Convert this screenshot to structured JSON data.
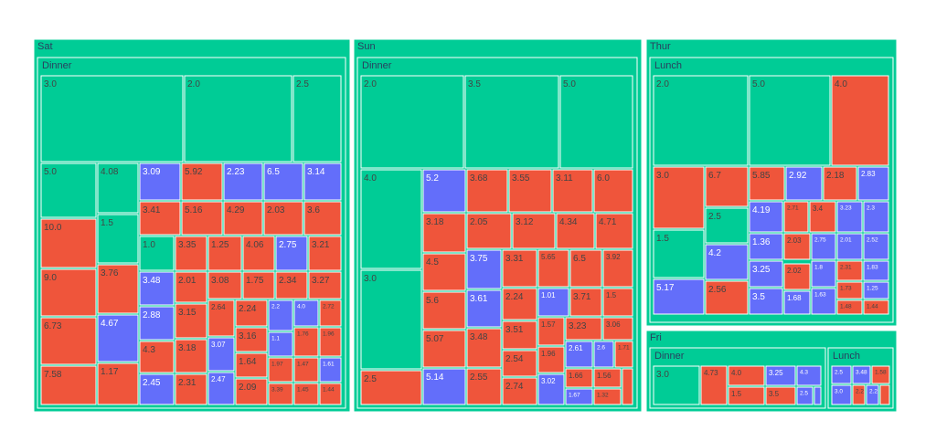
{
  "chart_data": {
    "type": "treemap",
    "colors": {
      "Female": "#ef553b",
      "Male": "#636efa",
      "group": "#00cc96",
      "border": "#ffffff"
    },
    "days": [
      {
        "name": "Sat",
        "times": [
          {
            "name": "Dinner",
            "tiles": [
              {
                "label": "3.0",
                "color": "group"
              },
              {
                "label": "2.0",
                "color": "group"
              },
              {
                "label": "2.5",
                "color": "group"
              },
              {
                "label": "5.0",
                "color": "group"
              },
              {
                "label": "4.08",
                "color": "group"
              },
              {
                "label": "1.5",
                "color": "group"
              },
              {
                "label": "10.0",
                "color": "Female"
              },
              {
                "label": "9.0",
                "color": "Female"
              },
              {
                "label": "3.76",
                "color": "Female"
              },
              {
                "label": "6.73",
                "color": "Female"
              },
              {
                "label": "4.67",
                "color": "Male"
              },
              {
                "label": "7.58",
                "color": "Female"
              },
              {
                "label": "1.17",
                "color": "Female"
              },
              {
                "label": "3.09",
                "color": "Male"
              },
              {
                "label": "5.92",
                "color": "Female"
              },
              {
                "label": "2.23",
                "color": "Male"
              },
              {
                "label": "6.5",
                "color": "Male"
              },
              {
                "label": "3.14",
                "color": "Male"
              },
              {
                "label": "3.41",
                "color": "Female"
              },
              {
                "label": "5.16",
                "color": "Female"
              },
              {
                "label": "4.29",
                "color": "Female"
              },
              {
                "label": "2.03",
                "color": "Female"
              },
              {
                "label": "3.6",
                "color": "Female"
              },
              {
                "label": "1.0",
                "color": "group"
              },
              {
                "label": "3.35",
                "color": "Female"
              },
              {
                "label": "1.25",
                "color": "Female"
              },
              {
                "label": "4.06",
                "color": "Female"
              },
              {
                "label": "2.75",
                "color": "Male"
              },
              {
                "label": "3.21",
                "color": "Female"
              },
              {
                "label": "3.48",
                "color": "Male"
              },
              {
                "label": "2.01",
                "color": "Female"
              },
              {
                "label": "3.08",
                "color": "Female"
              },
              {
                "label": "1.75",
                "color": "Female"
              },
              {
                "label": "2.34",
                "color": "Female"
              },
              {
                "label": "3.27",
                "color": "Female"
              },
              {
                "label": "2.88",
                "color": "Male"
              },
              {
                "label": "3.15",
                "color": "Female"
              },
              {
                "label": "2.64",
                "color": "Female"
              },
              {
                "label": "2.24",
                "color": "Female"
              },
              {
                "label": "2.2",
                "color": "Male"
              },
              {
                "label": "4.0",
                "color": "Male"
              },
              {
                "label": "2.72",
                "color": "Female"
              },
              {
                "label": "4.3",
                "color": "Female"
              },
              {
                "label": "3.18",
                "color": "Female"
              },
              {
                "label": "3.07",
                "color": "Male"
              },
              {
                "label": "3.16",
                "color": "Female"
              },
              {
                "label": "1.1",
                "color": "Male"
              },
              {
                "label": "1.76",
                "color": "Female"
              },
              {
                "label": "1.96",
                "color": "Female"
              },
              {
                "label": "1.64",
                "color": "Female"
              },
              {
                "label": "1.97",
                "color": "Female"
              },
              {
                "label": "1.47",
                "color": "Female"
              },
              {
                "label": "1.61",
                "color": "Male"
              },
              {
                "label": "2.45",
                "color": "Male"
              },
              {
                "label": "2.31",
                "color": "Female"
              },
              {
                "label": "2.47",
                "color": "Male"
              },
              {
                "label": "2.09",
                "color": "Female"
              },
              {
                "label": "3.39",
                "color": "Female"
              },
              {
                "label": "1.45",
                "color": "Female"
              },
              {
                "label": "1.44",
                "color": "Female"
              }
            ]
          }
        ]
      },
      {
        "name": "Sun",
        "times": [
          {
            "name": "Dinner",
            "tiles": [
              {
                "label": "2.0",
                "color": "group"
              },
              {
                "label": "3.5",
                "color": "group"
              },
              {
                "label": "5.0",
                "color": "group"
              },
              {
                "label": "4.0",
                "color": "group"
              },
              {
                "label": "3.0",
                "color": "group"
              },
              {
                "label": "2.5",
                "color": "Female"
              },
              {
                "label": "5.2",
                "color": "Male"
              },
              {
                "label": "3.68",
                "color": "Female"
              },
              {
                "label": "3.55",
                "color": "Female"
              },
              {
                "label": "3.11",
                "color": "Female"
              },
              {
                "label": "6.0",
                "color": "Female"
              },
              {
                "label": "3.18",
                "color": "Female"
              },
              {
                "label": "2.05",
                "color": "Female"
              },
              {
                "label": "3.12",
                "color": "Female"
              },
              {
                "label": "4.34",
                "color": "Female"
              },
              {
                "label": "4.71",
                "color": "Female"
              },
              {
                "label": "4.5",
                "color": "Female"
              },
              {
                "label": "3.75",
                "color": "Male"
              },
              {
                "label": "3.31",
                "color": "Female"
              },
              {
                "label": "5.65",
                "color": "Female"
              },
              {
                "label": "6.5",
                "color": "Female"
              },
              {
                "label": "3.92",
                "color": "Female"
              },
              {
                "label": "5.6",
                "color": "Female"
              },
              {
                "label": "3.61",
                "color": "Male"
              },
              {
                "label": "2.24",
                "color": "Female"
              },
              {
                "label": "1.01",
                "color": "Male"
              },
              {
                "label": "3.71",
                "color": "Female"
              },
              {
                "label": "1.5",
                "color": "Female"
              },
              {
                "label": "3.51",
                "color": "Female"
              },
              {
                "label": "1.57",
                "color": "Female"
              },
              {
                "label": "3.23",
                "color": "Female"
              },
              {
                "label": "3.06",
                "color": "Female"
              },
              {
                "label": "5.07",
                "color": "Female"
              },
              {
                "label": "3.48",
                "color": "Female"
              },
              {
                "label": "2.54",
                "color": "Female"
              },
              {
                "label": "1.96",
                "color": "Female"
              },
              {
                "label": "2.61",
                "color": "Male"
              },
              {
                "label": "2.6",
                "color": "Male"
              },
              {
                "label": "1.71",
                "color": "Female"
              },
              {
                "label": "5.14",
                "color": "Male"
              },
              {
                "label": "2.55",
                "color": "Female"
              },
              {
                "label": "2.74",
                "color": "Female"
              },
              {
                "label": "3.02",
                "color": "Male"
              },
              {
                "label": "1.66",
                "color": "Female"
              },
              {
                "label": "1.56",
                "color": "Female"
              },
              {
                "label": "1.67",
                "color": "Male"
              },
              {
                "label": "1.32",
                "color": "Female"
              },
              {
                "label": "",
                "color": "Female"
              }
            ]
          }
        ]
      },
      {
        "name": "Thur",
        "times": [
          {
            "name": "Lunch",
            "tiles": [
              {
                "label": "2.0",
                "color": "group"
              },
              {
                "label": "5.0",
                "color": "group"
              },
              {
                "label": "4.0",
                "color": "Female"
              },
              {
                "label": "3.0",
                "color": "Female"
              },
              {
                "label": "6.7",
                "color": "Female"
              },
              {
                "label": "2.5",
                "color": "group"
              },
              {
                "label": "1.5",
                "color": "group"
              },
              {
                "label": "4.2",
                "color": "Male"
              },
              {
                "label": "5.17",
                "color": "Male"
              },
              {
                "label": "2.56",
                "color": "Female"
              },
              {
                "label": "5.85",
                "color": "Female"
              },
              {
                "label": "2.92",
                "color": "Male"
              },
              {
                "label": "2.18",
                "color": "Female"
              },
              {
                "label": "2.83",
                "color": "Male"
              },
              {
                "label": "4.19",
                "color": "Male"
              },
              {
                "label": "2.71",
                "color": "Female"
              },
              {
                "label": "3.4",
                "color": "Female"
              },
              {
                "label": "3.23",
                "color": "Male"
              },
              {
                "label": "2.3",
                "color": "Male"
              },
              {
                "label": "1.36",
                "color": "Male"
              },
              {
                "label": "2.03",
                "color": "Female"
              },
              {
                "label": "2.75",
                "color": "Male"
              },
              {
                "label": "2.01",
                "color": "Male"
              },
              {
                "label": "2.52",
                "color": "Male"
              },
              {
                "label": "3.25",
                "color": "Male"
              },
              {
                "label": "2.02",
                "color": "Female"
              },
              {
                "label": "1.8",
                "color": "Male"
              },
              {
                "label": "2.31",
                "color": "Female"
              },
              {
                "label": "1.83",
                "color": "Male"
              },
              {
                "label": "3.5",
                "color": "Male"
              },
              {
                "label": "1.68",
                "color": "Male"
              },
              {
                "label": "1.63",
                "color": "Male"
              },
              {
                "label": "1.73",
                "color": "Female"
              },
              {
                "label": "1.25",
                "color": "Male"
              },
              {
                "label": "1.48",
                "color": "Female"
              },
              {
                "label": "1.44",
                "color": "Female"
              }
            ]
          }
        ]
      },
      {
        "name": "Fri",
        "times": [
          {
            "name": "Dinner",
            "tiles": [
              {
                "label": "3.0",
                "color": "group"
              },
              {
                "label": "4.73",
                "color": "Female"
              },
              {
                "label": "4.0",
                "color": "Female"
              },
              {
                "label": "1.5",
                "color": "Female"
              },
              {
                "label": "3.25",
                "color": "Male"
              },
              {
                "label": "3.5",
                "color": "Female"
              },
              {
                "label": "4.3",
                "color": "Male"
              },
              {
                "label": "2.5",
                "color": "Male"
              },
              {
                "label": "",
                "color": "Male"
              }
            ]
          },
          {
            "name": "Lunch",
            "tiles": [
              {
                "label": "2.5",
                "color": "Male"
              },
              {
                "label": "3.48",
                "color": "Male"
              },
              {
                "label": "1.58",
                "color": "Female"
              },
              {
                "label": "3.0",
                "color": "Male"
              },
              {
                "label": "2.2",
                "color": "Female"
              },
              {
                "label": "2.2",
                "color": "Male"
              },
              {
                "label": "",
                "color": "Female"
              }
            ]
          }
        ]
      }
    ]
  }
}
